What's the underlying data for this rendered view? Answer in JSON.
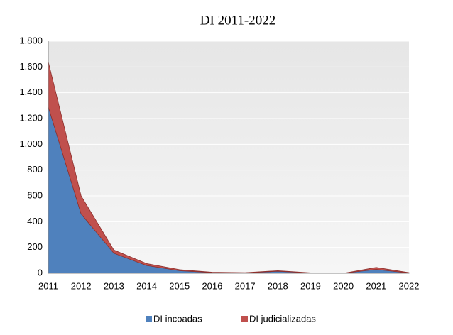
{
  "chart_data": {
    "type": "stacked_area",
    "title": "DI 2011-2022",
    "categories": [
      "2011",
      "2012",
      "2013",
      "2014",
      "2015",
      "2016",
      "2017",
      "2018",
      "2019",
      "2020",
      "2021",
      "2022"
    ],
    "series": [
      {
        "name": "DI incoadas",
        "color": "#4f81bd",
        "values": [
          1290,
          460,
          155,
          60,
          20,
          5,
          3,
          15,
          2,
          0,
          30,
          2
        ]
      },
      {
        "name": "DI judicializadas",
        "color": "#c0504d",
        "values": [
          350,
          140,
          25,
          15,
          8,
          3,
          2,
          5,
          1,
          0,
          15,
          3
        ]
      }
    ],
    "ylim": [
      0,
      1800
    ],
    "yticks": [
      0,
      200,
      400,
      600,
      800,
      {
        "value": 1000,
        "label": "1.000"
      },
      {
        "value": 1200,
        "label": "1.200"
      },
      {
        "value": 1400,
        "label": "1.400"
      },
      {
        "value": 1600,
        "label": "1.600"
      },
      {
        "value": 1800,
        "label": "1.800"
      }
    ],
    "grid": true,
    "legend": "bottom"
  }
}
